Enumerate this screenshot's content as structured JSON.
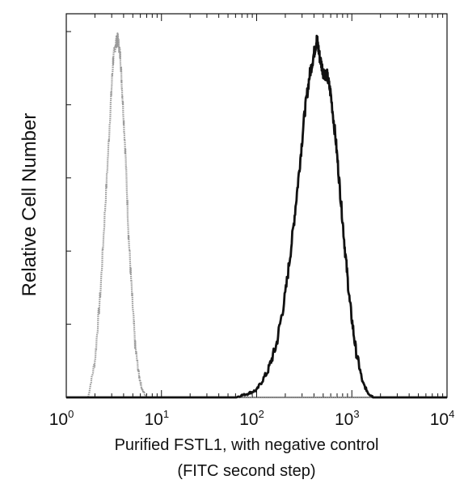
{
  "chart_data": {
    "type": "line",
    "xlabel_line1": "Purified FSTL1, with negative control",
    "xlabel_line2": "(FITC second step)",
    "ylabel": "Relative Cell Number",
    "x_scale": "log",
    "xlim": [
      1,
      10000
    ],
    "ylim": [
      0,
      1
    ],
    "grid": false,
    "x_ticks": [
      {
        "base": "10",
        "exp": "0",
        "value": 1
      },
      {
        "base": "10",
        "exp": "1",
        "value": 10
      },
      {
        "base": "10",
        "exp": "2",
        "value": 100
      },
      {
        "base": "10",
        "exp": "3",
        "value": 1000
      },
      {
        "base": "10",
        "exp": "4",
        "value": 10000
      }
    ],
    "series": [
      {
        "role": "negative-control",
        "color": "#9a9a9a",
        "x": [
          1.7,
          2.0,
          2.3,
          2.6,
          2.9,
          3.1,
          3.3,
          3.5,
          3.7,
          3.9,
          4.2,
          4.5,
          4.9,
          5.3,
          5.8,
          6.3,
          7.0
        ],
        "y": [
          0.0,
          0.1,
          0.3,
          0.55,
          0.78,
          0.92,
          0.97,
          0.98,
          0.93,
          0.82,
          0.66,
          0.45,
          0.28,
          0.14,
          0.06,
          0.02,
          0.0
        ]
      },
      {
        "role": "purified-fstl1",
        "color": "#111111",
        "x": [
          60,
          80,
          100,
          130,
          160,
          200,
          240,
          280,
          320,
          360,
          400,
          430,
          460,
          500,
          550,
          600,
          680,
          760,
          850,
          950,
          1100,
          1300,
          1500,
          1700
        ],
        "y": [
          0.0,
          0.01,
          0.02,
          0.07,
          0.14,
          0.28,
          0.45,
          0.62,
          0.78,
          0.88,
          0.94,
          0.98,
          0.93,
          0.89,
          0.88,
          0.83,
          0.7,
          0.55,
          0.4,
          0.26,
          0.13,
          0.04,
          0.01,
          0.0
        ]
      }
    ]
  }
}
